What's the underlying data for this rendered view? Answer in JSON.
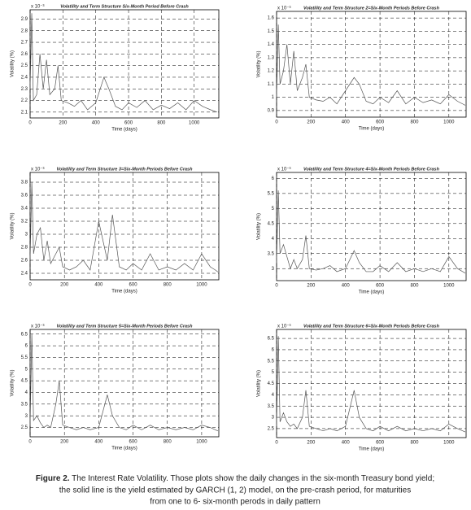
{
  "chart_data": [
    {
      "type": "line",
      "title": "Volatility and Term Structure Six-Month Period Before Crash",
      "y_multiplier": "x 10⁻³",
      "x_label": "Time (days)",
      "y_label": "Volatility (%)",
      "grid": true,
      "x": [
        0,
        10,
        20,
        40,
        60,
        80,
        100,
        120,
        150,
        170,
        190,
        230,
        270,
        310,
        350,
        400,
        450,
        480,
        520,
        560,
        600,
        650,
        700,
        750,
        800,
        850,
        900,
        950,
        1000,
        1050,
        1100,
        1140
      ],
      "series": [
        {
          "color": "#555555",
          "values": [
            2.3,
            2.95,
            2.2,
            2.25,
            2.6,
            2.3,
            2.55,
            2.25,
            2.3,
            2.5,
            2.2,
            2.18,
            2.15,
            2.2,
            2.12,
            2.18,
            2.4,
            2.3,
            2.15,
            2.12,
            2.18,
            2.14,
            2.2,
            2.12,
            2.16,
            2.13,
            2.18,
            2.12,
            2.2,
            2.15,
            2.12,
            2.1
          ]
        }
      ],
      "xlim": [
        0,
        1150
      ],
      "xticks": [
        0,
        200,
        400,
        600,
        800,
        1000
      ],
      "ylim": [
        2.05,
        2.98
      ],
      "yticks": [
        2.1,
        2.2,
        2.3,
        2.4,
        2.5,
        2.6,
        2.7,
        2.8,
        2.9
      ]
    },
    {
      "type": "line",
      "title": "Volatility and Term Structure 2=Six-Month Periods Before Crash",
      "y_multiplier": "x 10⁻³",
      "x_label": "Time (days)",
      "y_label": "Volatility (%)",
      "grid": true,
      "x": [
        0,
        10,
        20,
        40,
        60,
        80,
        100,
        120,
        150,
        170,
        190,
        230,
        270,
        310,
        350,
        400,
        450,
        480,
        520,
        560,
        600,
        650,
        700,
        750,
        800,
        850,
        900,
        950,
        1000,
        1050,
        1080,
        1095
      ],
      "series": [
        {
          "color": "#555555",
          "values": [
            1.0,
            1.55,
            1.1,
            1.2,
            1.4,
            1.1,
            1.35,
            1.05,
            1.15,
            1.25,
            1.0,
            0.98,
            0.97,
            1.0,
            0.95,
            1.05,
            1.15,
            1.1,
            0.97,
            0.95,
            1.0,
            0.96,
            1.05,
            0.95,
            1.0,
            0.96,
            0.98,
            0.95,
            1.02,
            0.97,
            0.95,
            0.94
          ]
        }
      ],
      "xlim": [
        0,
        1100
      ],
      "xticks": [
        0,
        200,
        400,
        600,
        800,
        1000
      ],
      "ylim": [
        0.85,
        1.65
      ],
      "yticks": [
        0.9,
        1,
        1.1,
        1.2,
        1.3,
        1.4,
        1.5,
        1.6
      ]
    },
    {
      "type": "line",
      "title": "Volatility and Term Structure 3=Six-Month Periods Before Crash",
      "y_multiplier": "x 10⁻³",
      "x_label": "Time (days)",
      "y_label": "Volatility (%)",
      "grid": true,
      "x": [
        0,
        10,
        20,
        40,
        60,
        80,
        100,
        120,
        150,
        170,
        190,
        230,
        270,
        310,
        350,
        400,
        450,
        480,
        520,
        560,
        600,
        650,
        700,
        750,
        800,
        850,
        900,
        950,
        1000,
        1050,
        1080,
        1095
      ],
      "series": [
        {
          "color": "#555555",
          "values": [
            2.6,
            3.8,
            2.7,
            3.0,
            3.1,
            2.6,
            2.9,
            2.55,
            2.7,
            2.8,
            2.5,
            2.45,
            2.5,
            2.6,
            2.45,
            3.2,
            2.6,
            3.3,
            2.5,
            2.45,
            2.55,
            2.45,
            2.7,
            2.45,
            2.5,
            2.45,
            2.55,
            2.45,
            2.7,
            2.5,
            2.45,
            2.42
          ]
        }
      ],
      "xlim": [
        0,
        1100
      ],
      "xticks": [
        0,
        200,
        400,
        600,
        800,
        1000
      ],
      "ylim": [
        2.3,
        3.95
      ],
      "yticks": [
        2.4,
        2.6,
        2.8,
        3,
        3.2,
        3.4,
        3.6,
        3.8
      ]
    },
    {
      "type": "line",
      "title": "Volatility and Term Structure 4=Six-Month Periods Before Crash",
      "y_multiplier": "x 10⁻³",
      "x_label": "Time (days)",
      "y_label": "Volatility (%)",
      "grid": true,
      "x": [
        0,
        10,
        20,
        40,
        60,
        80,
        100,
        120,
        150,
        170,
        190,
        230,
        270,
        310,
        350,
        400,
        450,
        480,
        520,
        560,
        600,
        650,
        700,
        750,
        800,
        850,
        900,
        950,
        1000,
        1050,
        1080,
        1095
      ],
      "series": [
        {
          "color": "#555555",
          "values": [
            3.2,
            5.6,
            3.5,
            3.8,
            3.4,
            3.0,
            3.3,
            3.0,
            3.3,
            4.1,
            3.0,
            2.95,
            3.0,
            3.1,
            2.9,
            3.0,
            3.6,
            3.2,
            2.9,
            2.9,
            3.1,
            2.9,
            3.2,
            2.9,
            3.0,
            2.9,
            3.0,
            2.9,
            3.4,
            3.0,
            2.9,
            2.85
          ]
        }
      ],
      "xlim": [
        0,
        1100
      ],
      "xticks": [
        0,
        200,
        400,
        600,
        800,
        1000
      ],
      "ylim": [
        2.6,
        6.2
      ],
      "yticks": [
        3,
        3.5,
        4,
        4.5,
        5,
        5.5,
        6
      ]
    },
    {
      "type": "line",
      "title": "Volatility and Term Structure 5=Six-Month Periods Before Crash",
      "y_multiplier": "x 10⁻³",
      "x_label": "Time (days)",
      "y_label": "Volatility (%)",
      "grid": true,
      "x": [
        0,
        10,
        20,
        40,
        60,
        80,
        100,
        120,
        150,
        170,
        190,
        230,
        270,
        310,
        350,
        400,
        450,
        480,
        520,
        560,
        600,
        650,
        700,
        750,
        800,
        850,
        900,
        950,
        1000,
        1050,
        1080,
        1095
      ],
      "series": [
        {
          "color": "#555555",
          "values": [
            2.6,
            6.5,
            2.8,
            3.0,
            2.7,
            2.5,
            2.6,
            2.5,
            3.5,
            4.5,
            2.6,
            2.5,
            2.4,
            2.5,
            2.4,
            2.5,
            3.9,
            3.0,
            2.5,
            2.4,
            2.6,
            2.4,
            2.6,
            2.4,
            2.5,
            2.4,
            2.5,
            2.4,
            2.6,
            2.5,
            2.4,
            2.35
          ]
        }
      ],
      "xlim": [
        0,
        1100
      ],
      "xticks": [
        0,
        200,
        400,
        600,
        800,
        1000
      ],
      "ylim": [
        2.1,
        6.7
      ],
      "yticks": [
        2.5,
        3,
        3.5,
        4,
        4.5,
        5,
        5.5,
        6,
        6.5
      ]
    },
    {
      "type": "line",
      "title": "Volatility and Term Structure 6=Six-Month Periods Before Crash",
      "y_multiplier": "x 10⁻³",
      "x_label": "Time (days)",
      "y_label": "Volatility (%)",
      "grid": true,
      "x": [
        0,
        10,
        20,
        40,
        60,
        80,
        100,
        120,
        150,
        170,
        190,
        230,
        270,
        310,
        350,
        400,
        450,
        480,
        520,
        560,
        600,
        650,
        700,
        750,
        800,
        850,
        900,
        950,
        1000,
        1050,
        1080,
        1095
      ],
      "series": [
        {
          "color": "#555555",
          "values": [
            2.6,
            6.6,
            2.8,
            3.2,
            2.8,
            2.6,
            2.7,
            2.5,
            3.0,
            4.2,
            2.6,
            2.5,
            2.4,
            2.5,
            2.4,
            2.6,
            4.2,
            3.0,
            2.5,
            2.4,
            2.6,
            2.4,
            2.6,
            2.4,
            2.5,
            2.4,
            2.5,
            2.4,
            2.7,
            2.5,
            2.4,
            2.35
          ]
        }
      ],
      "xlim": [
        0,
        1100
      ],
      "xticks": [
        0,
        200,
        400,
        600,
        800,
        1000
      ],
      "ylim": [
        2.1,
        6.9
      ],
      "yticks": [
        2.5,
        3,
        3.5,
        4,
        4.5,
        5,
        5.5,
        6,
        6.5
      ]
    }
  ],
  "caption": {
    "label": "Figure 2.",
    "lines": [
      " The Interest Rate Volatility. Those plots show the daily changes in the six-month Treasury bond yield;",
      "the solid line is the yield estimated by GARCH (1, 2) model, on the pre-crash period, for maturities",
      "from one to 6- six-month perods in daily pattern"
    ]
  }
}
